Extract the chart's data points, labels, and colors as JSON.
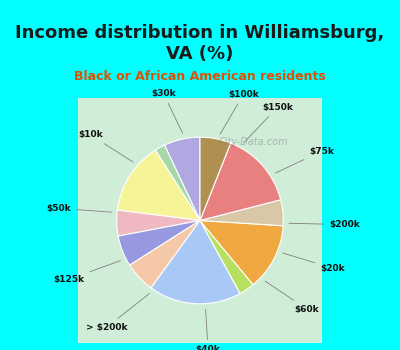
{
  "title": "Income distribution in Williamsburg,\nVA (%)",
  "subtitle": "Black or African American residents",
  "background_top": "#00FFFF",
  "background_chart": "#d8f0e0",
  "slices": [
    {
      "label": "$100k",
      "value": 7,
      "color": "#b0a8e0"
    },
    {
      "label": "$150k",
      "value": 2,
      "color": "#a8d8a8"
    },
    {
      "label": "$75k",
      "value": 14,
      "color": "#f5f598"
    },
    {
      "label": "$200k",
      "value": 5,
      "color": "#f0b8c0"
    },
    {
      "label": "$20k",
      "value": 6,
      "color": "#9898e0"
    },
    {
      "label": "$60k",
      "value": 6,
      "color": "#f5c8a8"
    },
    {
      "label": "$40k",
      "value": 18,
      "color": "#a8c8f5"
    },
    {
      "label": "> $200k",
      "value": 3,
      "color": "#b8e060"
    },
    {
      "label": "$125k",
      "value": 13,
      "color": "#f0a840"
    },
    {
      "label": "$50k",
      "value": 5,
      "color": "#d8c8a8"
    },
    {
      "label": "$10k",
      "value": 15,
      "color": "#e88080"
    },
    {
      "label": "$30k",
      "value": 6,
      "color": "#b09050"
    }
  ],
  "watermark": "City-Data.com"
}
